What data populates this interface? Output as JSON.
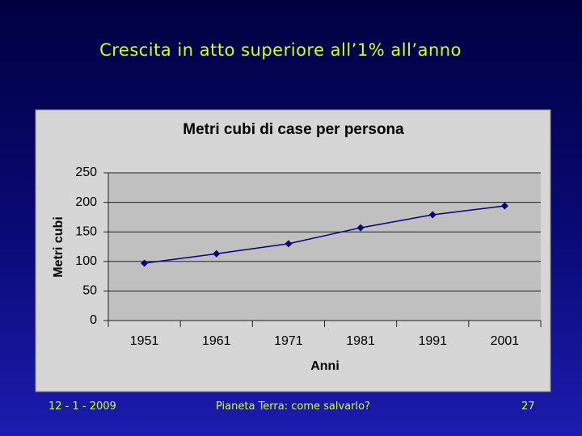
{
  "slide": {
    "title": "Crescita in atto superiore all’1% all’anno",
    "footer": {
      "date": "12 - 1 - 2009",
      "center": "Pianeta Terra: come salvarlo?",
      "page": "27"
    }
  },
  "chart_data": {
    "type": "line",
    "title": "Metri cubi di case per persona",
    "x_label": "Anni",
    "y_label": "Metri cubi",
    "categories": [
      "1951",
      "1961",
      "1971",
      "1981",
      "1991",
      "2001"
    ],
    "values": [
      97,
      113,
      130,
      157,
      179,
      194
    ],
    "color": "#000080",
    "ylim": [
      0,
      250
    ],
    "yticks": [
      0,
      50,
      100,
      150,
      200,
      250
    ],
    "grid": true
  }
}
